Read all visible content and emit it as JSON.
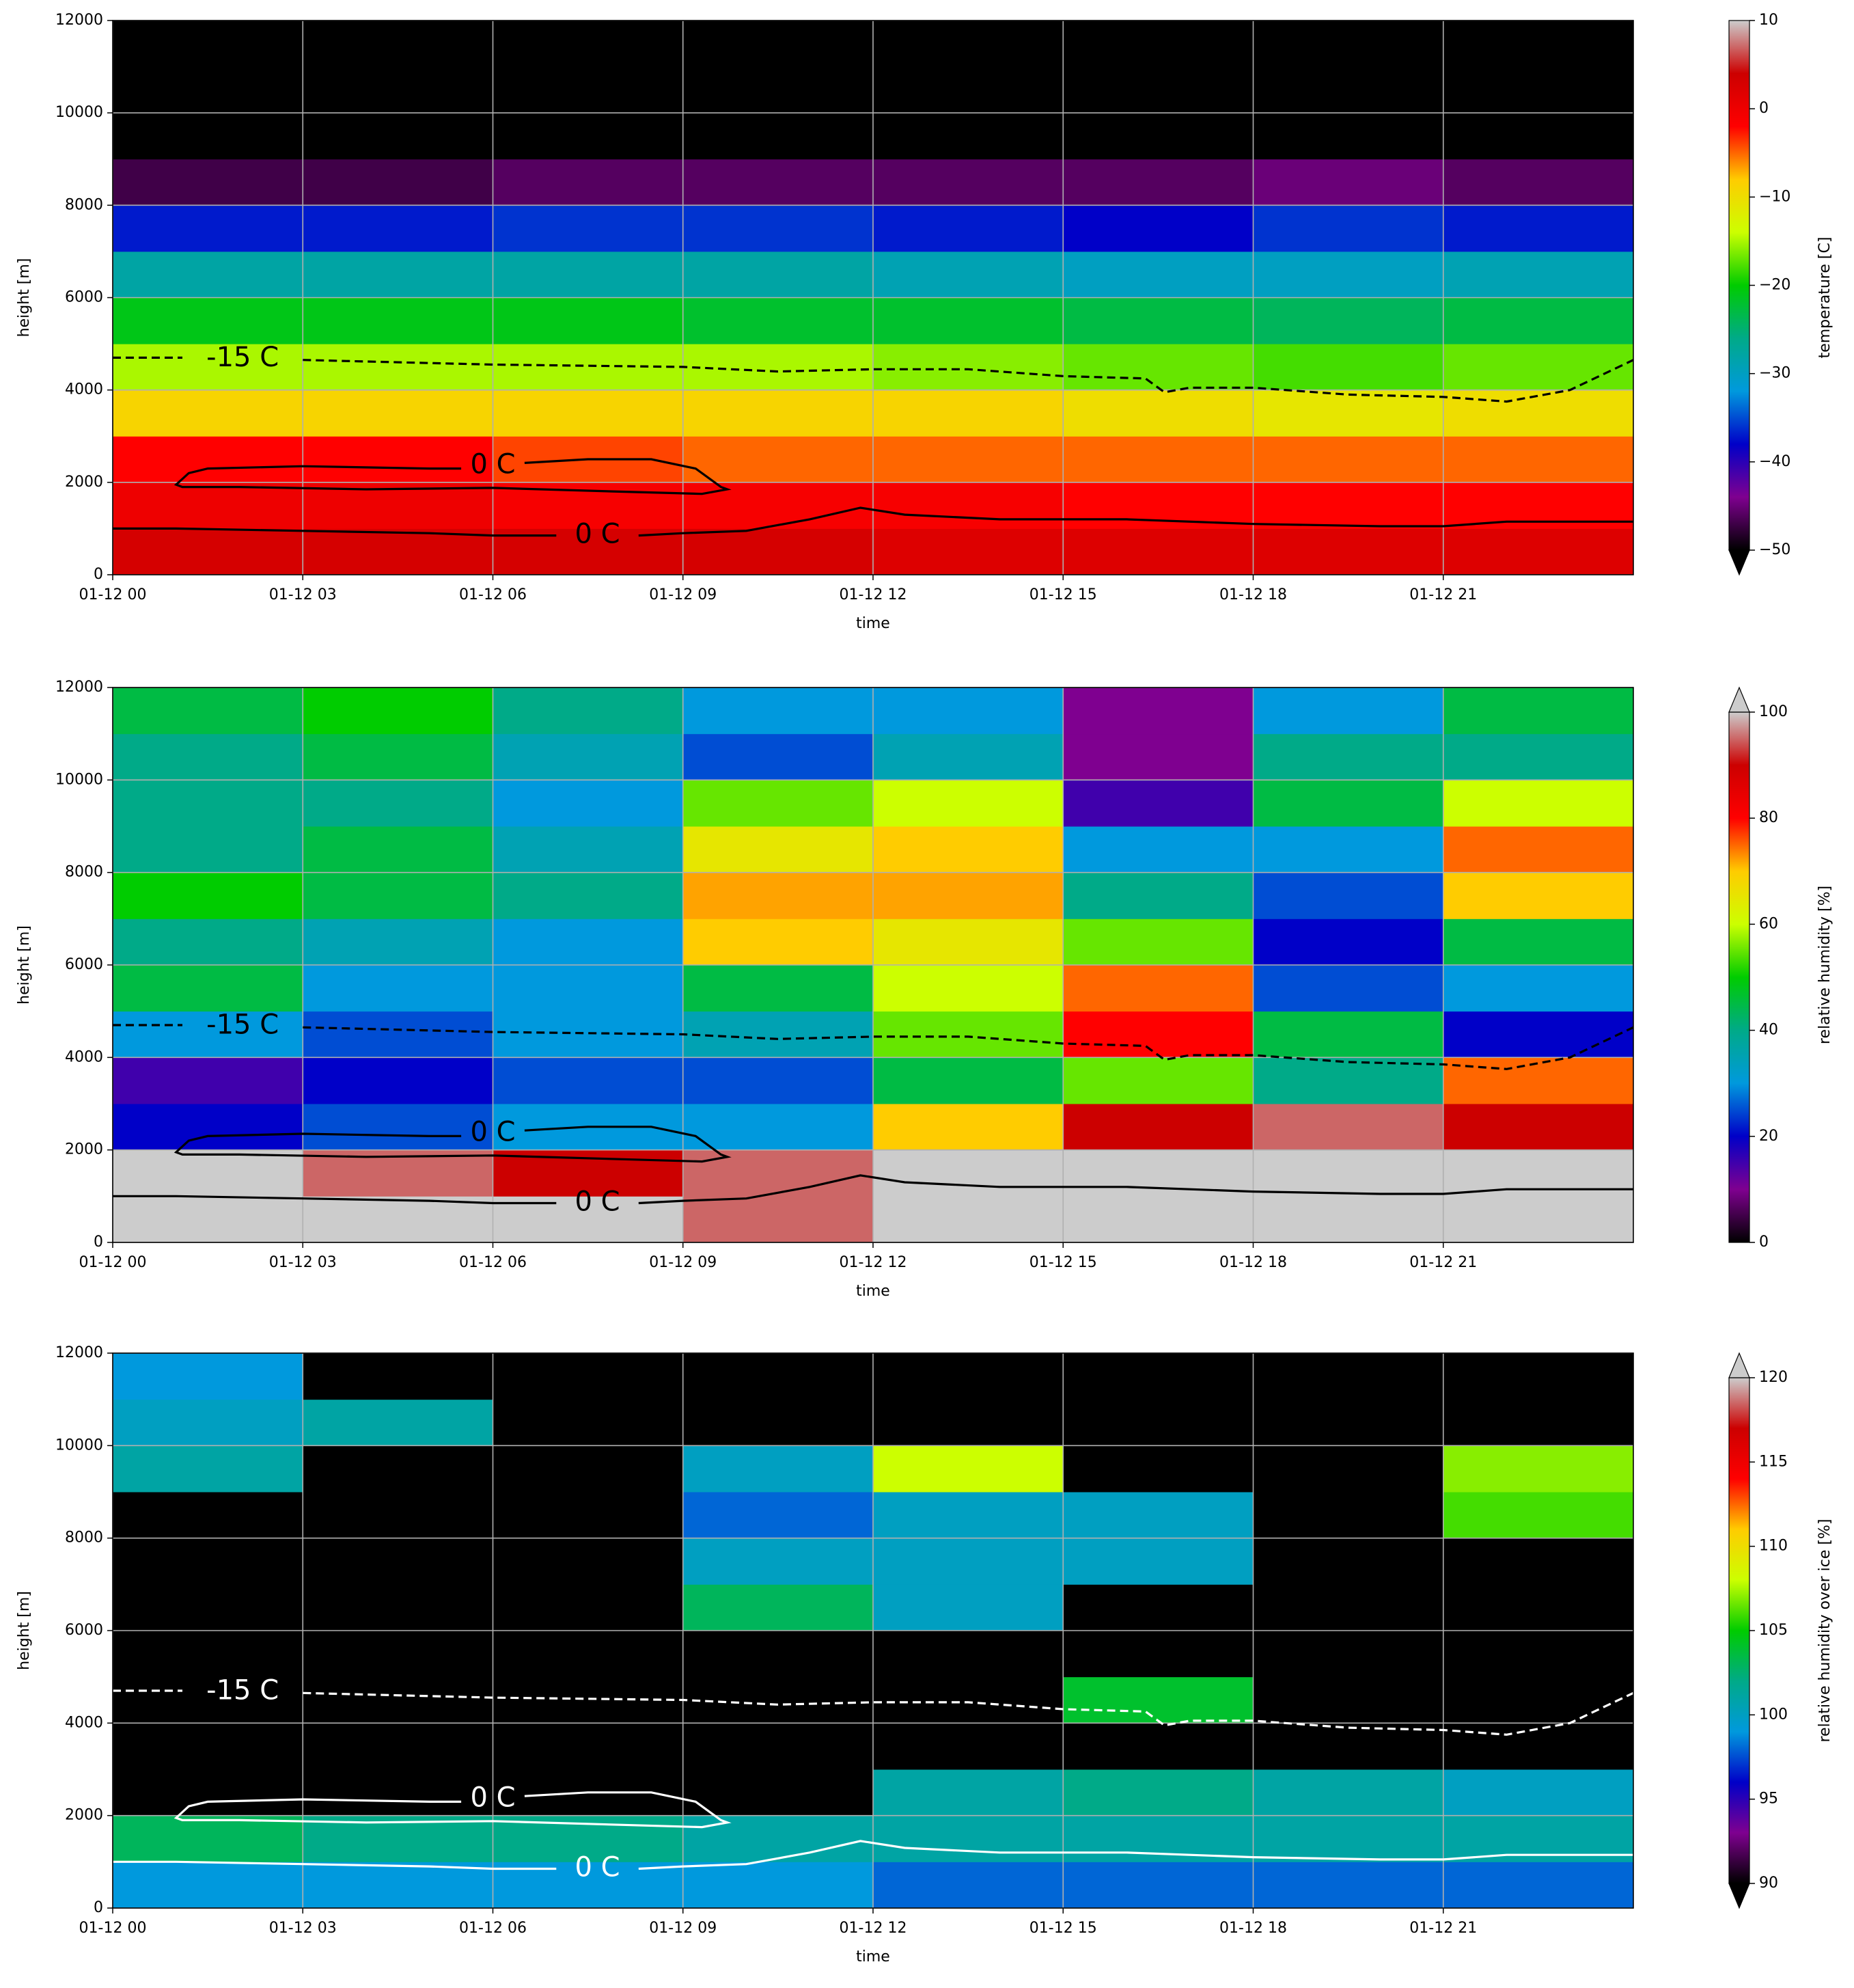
{
  "chart_data": [
    {
      "type": "heatmap",
      "xlabel": "time",
      "ylabel": "height [m]",
      "colorbar_label": "temperature [C]",
      "xlim": [
        0,
        24
      ],
      "ylim": [
        0,
        12000
      ],
      "xticks": [
        {
          "value": 0,
          "label": "01-12 00"
        },
        {
          "value": 3,
          "label": "01-12 03"
        },
        {
          "value": 6,
          "label": "01-12 06"
        },
        {
          "value": 9,
          "label": "01-12 09"
        },
        {
          "value": 12,
          "label": "01-12 12"
        },
        {
          "value": 15,
          "label": "01-12 15"
        },
        {
          "value": 18,
          "label": "01-12 18"
        },
        {
          "value": 21,
          "label": "01-12 21"
        }
      ],
      "yticks": [
        0,
        2000,
        4000,
        6000,
        8000,
        10000,
        12000
      ],
      "grid": true,
      "xbins": [
        0,
        3,
        6,
        9,
        12,
        15,
        18,
        21,
        24
      ],
      "ybins": [
        0,
        1000,
        2000,
        3000,
        4000,
        5000,
        6000,
        7000,
        8000,
        9000,
        10000,
        11000,
        12000
      ],
      "z": [
        [
          3,
          3,
          3,
          3,
          2,
          2,
          2,
          2
        ],
        [
          0,
          0,
          -1,
          -1,
          -1,
          -2,
          -2,
          -2
        ],
        [
          -2,
          -2,
          -4,
          -5,
          -5,
          -5,
          -5,
          -5
        ],
        [
          -9,
          -9,
          -9,
          -9,
          -9,
          -10,
          -11,
          -10
        ],
        [
          -15,
          -15,
          -15,
          -15,
          -16,
          -17,
          -18,
          -17
        ],
        [
          -21,
          -21,
          -21,
          -22,
          -22,
          -23,
          -24,
          -23
        ],
        [
          -28,
          -28,
          -28,
          -28,
          -29,
          -30,
          -30,
          -29
        ],
        [
          -37,
          -37,
          -36,
          -36,
          -37,
          -38,
          -36,
          -37
        ],
        [
          -47,
          -47,
          -46,
          -46,
          -46,
          -46,
          -45,
          -46
        ],
        [
          -60,
          -60,
          -60,
          -60,
          -60,
          -60,
          -60,
          -60
        ],
        [
          -60,
          -60,
          -60,
          -60,
          -60,
          -60,
          -60,
          -60
        ],
        [
          -60,
          -60,
          -60,
          -60,
          -60,
          -60,
          -60,
          -60
        ]
      ],
      "clim": [
        -50,
        10
      ],
      "cticks": [
        {
          "value": -50,
          "label": "−50"
        },
        {
          "value": -40,
          "label": "−40"
        },
        {
          "value": -30,
          "label": "−30"
        },
        {
          "value": -20,
          "label": "−20"
        },
        {
          "value": -10,
          "label": "−10"
        },
        0,
        10
      ],
      "colorscale": [
        "#000000",
        "#7f0090",
        "#0000c8",
        "#0099dd",
        "#00aa88",
        "#00cc00",
        "#ccff00",
        "#ffcc00",
        "#ff0000",
        "#cc0000",
        "#cccccc"
      ],
      "extend": "min",
      "under_color": "#000000",
      "contour_color": "#000000",
      "contours": [
        {
          "label": "-15 C",
          "dashed": true,
          "x": [
            0,
            1.1,
            null,
            3,
            6,
            9,
            10.5,
            12,
            13.5,
            15,
            16.3,
            16.6,
            17,
            18,
            19.5,
            21,
            22,
            23,
            24
          ],
          "y": [
            4700,
            4700,
            null,
            4650,
            4550,
            4500,
            4400,
            4450,
            4450,
            4300,
            4250,
            3950,
            4050,
            4050,
            3900,
            3850,
            3750,
            4000,
            4650
          ]
        },
        {
          "label": "0 C",
          "dashed": false,
          "x": [
            6.5,
            7.5,
            8.5,
            9.2,
            9.6,
            9.7,
            9.3,
            8,
            6,
            4,
            2,
            1.1,
            1.0,
            1.2,
            1.5,
            3,
            5,
            5.5
          ],
          "y": [
            2420,
            2500,
            2500,
            2300,
            1900,
            1850,
            1750,
            1800,
            1880,
            1850,
            1900,
            1900,
            1950,
            2200,
            2300,
            2350,
            2300,
            2300
          ]
        },
        {
          "label": "0 C",
          "dashed": false,
          "x": [
            0,
            1,
            3,
            5,
            6,
            7,
            null,
            8.3,
            9,
            10,
            11,
            11.8,
            12.5,
            14,
            16,
            18,
            20,
            21,
            22,
            24
          ],
          "y": [
            1000,
            1000,
            950,
            900,
            850,
            850,
            null,
            850,
            900,
            950,
            1200,
            1450,
            1300,
            1200,
            1200,
            1100,
            1050,
            1050,
            1150,
            1150
          ]
        }
      ]
    },
    {
      "type": "heatmap",
      "xlabel": "time",
      "ylabel": "height [m]",
      "colorbar_label": "relative humidity [%]",
      "xlim": [
        0,
        24
      ],
      "ylim": [
        0,
        12000
      ],
      "xticks": [
        {
          "value": 0,
          "label": "01-12 00"
        },
        {
          "value": 3,
          "label": "01-12 03"
        },
        {
          "value": 6,
          "label": "01-12 06"
        },
        {
          "value": 9,
          "label": "01-12 09"
        },
        {
          "value": 12,
          "label": "01-12 12"
        },
        {
          "value": 15,
          "label": "01-12 15"
        },
        {
          "value": 18,
          "label": "01-12 18"
        },
        {
          "value": 21,
          "label": "01-12 21"
        }
      ],
      "yticks": [
        0,
        2000,
        4000,
        6000,
        8000,
        10000,
        12000
      ],
      "grid": true,
      "xbins": [
        0,
        3,
        6,
        9,
        12,
        15,
        18,
        21,
        24
      ],
      "ybins": [
        0,
        1000,
        2000,
        3000,
        4000,
        5000,
        6000,
        7000,
        8000,
        9000,
        10000,
        11000,
        12000
      ],
      "z": [
        [
          105,
          105,
          105,
          95,
          105,
          105,
          105,
          105
        ],
        [
          105,
          95,
          90,
          95,
          105,
          105,
          105,
          105
        ],
        [
          20,
          25,
          30,
          30,
          70,
          90,
          95,
          90
        ],
        [
          15,
          20,
          25,
          25,
          45,
          55,
          40,
          75
        ],
        [
          30,
          25,
          30,
          35,
          55,
          80,
          45,
          20
        ],
        [
          45,
          30,
          30,
          45,
          60,
          75,
          25,
          30
        ],
        [
          40,
          35,
          30,
          70,
          65,
          55,
          20,
          45
        ],
        [
          50,
          45,
          40,
          72,
          72,
          40,
          25,
          70
        ],
        [
          40,
          45,
          35,
          65,
          70,
          30,
          30,
          75
        ],
        [
          40,
          40,
          30,
          55,
          60,
          15,
          45,
          60
        ],
        [
          40,
          45,
          35,
          25,
          35,
          10,
          40,
          40
        ],
        [
          45,
          50,
          40,
          30,
          30,
          10,
          30,
          45
        ]
      ],
      "clim": [
        0,
        100
      ],
      "cticks": [
        0,
        20,
        40,
        60,
        80,
        100
      ],
      "colorscale": [
        "#000000",
        "#7f0090",
        "#0000c8",
        "#0099dd",
        "#00aa88",
        "#00cc00",
        "#ccff00",
        "#ffcc00",
        "#ff0000",
        "#cc0000",
        "#cccccc"
      ],
      "extend": "max",
      "over_color": "#cccccc",
      "contour_color": "#000000",
      "contours": [
        {
          "label": "-15 C",
          "dashed": true,
          "x": [
            0,
            1.1,
            null,
            3,
            6,
            9,
            10.5,
            12,
            13.5,
            15,
            16.3,
            16.6,
            17,
            18,
            19.5,
            21,
            22,
            23,
            24
          ],
          "y": [
            4700,
            4700,
            null,
            4650,
            4550,
            4500,
            4400,
            4450,
            4450,
            4300,
            4250,
            3950,
            4050,
            4050,
            3900,
            3850,
            3750,
            4000,
            4650
          ]
        },
        {
          "label": "0 C",
          "dashed": false,
          "x": [
            6.5,
            7.5,
            8.5,
            9.2,
            9.6,
            9.7,
            9.3,
            8,
            6,
            4,
            2,
            1.1,
            1.0,
            1.2,
            1.5,
            3,
            5,
            5.5
          ],
          "y": [
            2420,
            2500,
            2500,
            2300,
            1900,
            1850,
            1750,
            1800,
            1880,
            1850,
            1900,
            1900,
            1950,
            2200,
            2300,
            2350,
            2300,
            2300
          ]
        },
        {
          "label": "0 C",
          "dashed": false,
          "x": [
            0,
            1,
            3,
            5,
            6,
            7,
            null,
            8.3,
            9,
            10,
            11,
            11.8,
            12.5,
            14,
            16,
            18,
            20,
            21,
            22,
            24
          ],
          "y": [
            1000,
            1000,
            950,
            900,
            850,
            850,
            null,
            850,
            900,
            950,
            1200,
            1450,
            1300,
            1200,
            1200,
            1100,
            1050,
            1050,
            1150,
            1150
          ]
        }
      ]
    },
    {
      "type": "heatmap",
      "xlabel": "time",
      "ylabel": "height [m]",
      "colorbar_label": "relative humidity over ice [%]",
      "xlim": [
        0,
        24
      ],
      "ylim": [
        0,
        12000
      ],
      "xticks": [
        {
          "value": 0,
          "label": "01-12 00"
        },
        {
          "value": 3,
          "label": "01-12 03"
        },
        {
          "value": 6,
          "label": "01-12 06"
        },
        {
          "value": 9,
          "label": "01-12 09"
        },
        {
          "value": 12,
          "label": "01-12 12"
        },
        {
          "value": 15,
          "label": "01-12 15"
        },
        {
          "value": 18,
          "label": "01-12 18"
        },
        {
          "value": 21,
          "label": "01-12 21"
        }
      ],
      "yticks": [
        0,
        2000,
        4000,
        6000,
        8000,
        10000,
        12000
      ],
      "grid": true,
      "xbins": [
        0,
        3,
        6,
        9,
        12,
        15,
        18,
        21,
        24
      ],
      "ybins": [
        0,
        1000,
        2000,
        3000,
        4000,
        5000,
        6000,
        7000,
        8000,
        9000,
        10000,
        11000,
        12000
      ],
      "z": [
        [
          99,
          99,
          99,
          99,
          98,
          98,
          98,
          98
        ],
        [
          103,
          102,
          102,
          101,
          101,
          101,
          101,
          101
        ],
        [
          80,
          80,
          80,
          90,
          101,
          102,
          101,
          100
        ],
        [
          80,
          80,
          80,
          80,
          80,
          80,
          80,
          80
        ],
        [
          80,
          80,
          80,
          80,
          80,
          104,
          80,
          80
        ],
        [
          80,
          80,
          80,
          80,
          80,
          80,
          80,
          80
        ],
        [
          80,
          80,
          80,
          103,
          100,
          80,
          80,
          80
        ],
        [
          80,
          80,
          80,
          100,
          100,
          100,
          80,
          80
        ],
        [
          80,
          80,
          80,
          98,
          100,
          100,
          80,
          106
        ],
        [
          101,
          80,
          80,
          100,
          108,
          80,
          80,
          107
        ],
        [
          100,
          101,
          80,
          80,
          80,
          80,
          80,
          80
        ],
        [
          99,
          80,
          80,
          80,
          80,
          80,
          80,
          80
        ]
      ],
      "clim": [
        90,
        120
      ],
      "cticks": [
        90,
        95,
        100,
        105,
        110,
        115,
        120
      ],
      "colorscale": [
        "#000000",
        "#7f0090",
        "#0000c8",
        "#0099dd",
        "#00aa88",
        "#00cc00",
        "#ccff00",
        "#ffcc00",
        "#ff0000",
        "#cc0000",
        "#cccccc"
      ],
      "extend": "both",
      "under_color": "#000000",
      "over_color": "#cccccc",
      "contour_color": "#ffffff",
      "contours": [
        {
          "label": "-15 C",
          "dashed": true,
          "x": [
            0,
            1.1,
            null,
            3,
            6,
            9,
            10.5,
            12,
            13.5,
            15,
            16.3,
            16.6,
            17,
            18,
            19.5,
            21,
            22,
            23,
            24
          ],
          "y": [
            4700,
            4700,
            null,
            4650,
            4550,
            4500,
            4400,
            4450,
            4450,
            4300,
            4250,
            3950,
            4050,
            4050,
            3900,
            3850,
            3750,
            4000,
            4650
          ]
        },
        {
          "label": "0 C",
          "dashed": false,
          "x": [
            6.5,
            7.5,
            8.5,
            9.2,
            9.6,
            9.7,
            9.3,
            8,
            6,
            4,
            2,
            1.1,
            1.0,
            1.2,
            1.5,
            3,
            5,
            5.5
          ],
          "y": [
            2420,
            2500,
            2500,
            2300,
            1900,
            1850,
            1750,
            1800,
            1880,
            1850,
            1900,
            1900,
            1950,
            2200,
            2300,
            2350,
            2300,
            2300
          ]
        },
        {
          "label": "0 C",
          "dashed": false,
          "x": [
            0,
            1,
            3,
            5,
            6,
            7,
            null,
            8.3,
            9,
            10,
            11,
            11.8,
            12.5,
            14,
            16,
            18,
            20,
            21,
            22,
            24
          ],
          "y": [
            1000,
            1000,
            950,
            900,
            850,
            850,
            null,
            850,
            900,
            950,
            1200,
            1450,
            1300,
            1200,
            1200,
            1100,
            1050,
            1050,
            1150,
            1150
          ]
        }
      ]
    }
  ]
}
